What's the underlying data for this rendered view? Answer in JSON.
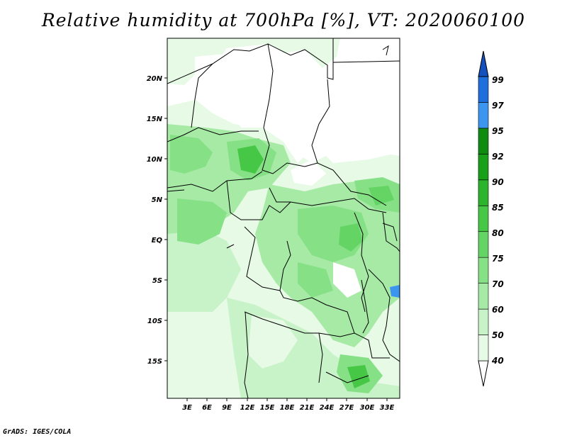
{
  "title": "Relative humidity at 700hPa [%], VT: 2020060100",
  "credit": "GrADS: IGES/COLA",
  "map": {
    "lat_ticks": [
      "20N",
      "15N",
      "10N",
      "5N",
      "EQ",
      "5S",
      "10S",
      "15S"
    ],
    "lon_ticks": [
      "3E",
      "6E",
      "9E",
      "12E",
      "15E",
      "18E",
      "21E",
      "24E",
      "27E",
      "30E",
      "33E"
    ]
  },
  "colorbar": {
    "levels": [
      "40",
      "50",
      "60",
      "70",
      "75",
      "80",
      "85",
      "90",
      "92",
      "95",
      "97",
      "99"
    ],
    "colors": [
      "#ffffff",
      "#e6fae6",
      "#c8f2c8",
      "#a6eaa6",
      "#86e086",
      "#64d464",
      "#46c846",
      "#2cb42c",
      "#18a018",
      "#0f8c0f",
      "#3c96f0",
      "#1e6edc",
      "#1450be"
    ]
  }
}
